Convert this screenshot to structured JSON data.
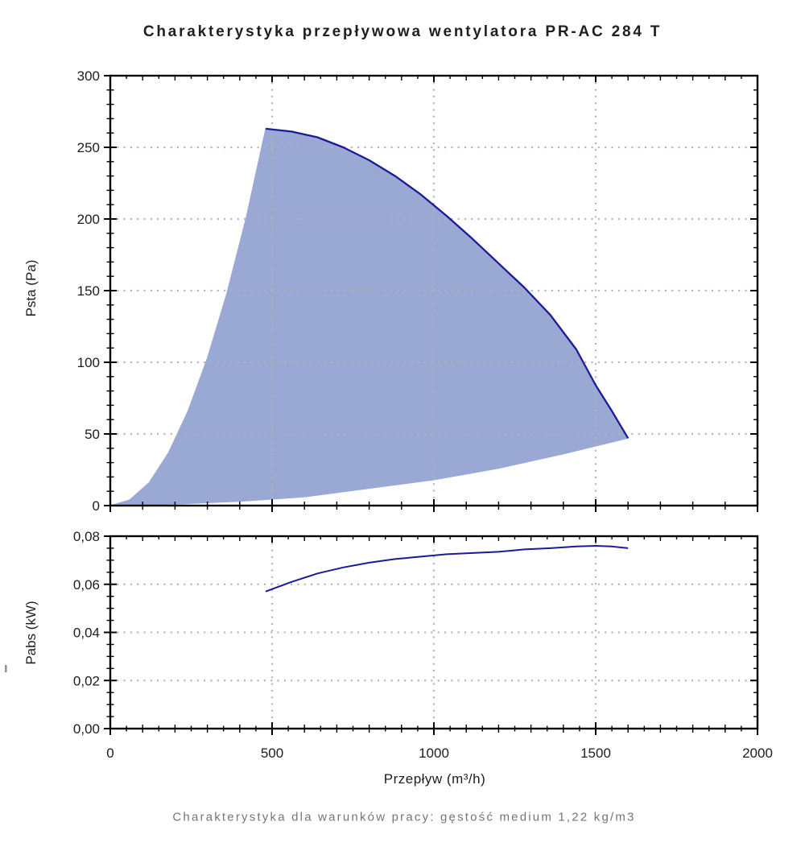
{
  "page": {
    "title": "Charakterystyka przepływowa wentylatora PR-AC 284 T",
    "caption": "Charakterystyka dla warunków pracy: gęstość medium 1,22 kg/m3"
  },
  "colors": {
    "fill": "#9aa8d4",
    "line": "#1b1b99",
    "grid": "#b4b4b4",
    "axis": "#000000",
    "text": "#1d1d1d",
    "title": "#1f1f1f",
    "caption": "#757575"
  },
  "chart_data": [
    {
      "type": "area",
      "title": "",
      "xlabel": "",
      "ylabel": "Psta (Pa)",
      "xlim": [
        0,
        2000
      ],
      "ylim": [
        0,
        300
      ],
      "xticks": [
        0,
        500,
        1000,
        1500,
        2000
      ],
      "yticks": [
        0,
        50,
        100,
        150,
        200,
        250,
        300
      ],
      "ytick_labels": [
        "0",
        "50",
        "100",
        "150",
        "200",
        "250",
        "300"
      ],
      "x_minor_step": 50,
      "y_minor_step": 10,
      "grid": "dotted",
      "grid_x": [
        500,
        1000,
        1500
      ],
      "grid_y": [
        50,
        100,
        150,
        200,
        250
      ],
      "xtick_labels_visible": false,
      "x_bottom_ticks_every": 100,
      "legend": "none",
      "envelope": {
        "description": "shaded operating envelope bounded by surge line, max-speed fan curve and minimum system curve",
        "surge_line": [
          [
            0,
            0
          ],
          [
            60,
            4
          ],
          [
            120,
            16
          ],
          [
            180,
            37
          ],
          [
            240,
            66
          ],
          [
            300,
            103
          ],
          [
            360,
            148
          ],
          [
            420,
            201
          ],
          [
            480,
            263
          ]
        ],
        "fan_curve": [
          [
            480,
            263
          ],
          [
            560,
            261
          ],
          [
            640,
            257
          ],
          [
            720,
            250
          ],
          [
            800,
            241
          ],
          [
            880,
            230
          ],
          [
            960,
            217
          ],
          [
            1040,
            202
          ],
          [
            1120,
            186
          ],
          [
            1200,
            169
          ],
          [
            1280,
            152
          ],
          [
            1360,
            133
          ],
          [
            1440,
            109
          ],
          [
            1500,
            84
          ],
          [
            1550,
            66
          ],
          [
            1600,
            47
          ]
        ],
        "min_system_curve": [
          [
            0,
            0
          ],
          [
            200,
            1
          ],
          [
            400,
            3
          ],
          [
            600,
            6
          ],
          [
            800,
            12
          ],
          [
            1000,
            18
          ],
          [
            1200,
            26
          ],
          [
            1400,
            36
          ],
          [
            1600,
            47
          ]
        ]
      }
    },
    {
      "type": "line",
      "title": "",
      "xlabel": "Przepływ (m³/h)",
      "ylabel": "Pabs (kW)",
      "xlim": [
        0,
        2000
      ],
      "ylim": [
        0,
        0.08
      ],
      "xticks": [
        0,
        500,
        1000,
        1500,
        2000
      ],
      "xtick_labels": [
        "0",
        "500",
        "1000",
        "1500",
        "2000"
      ],
      "yticks": [
        0,
        0.02,
        0.04,
        0.06,
        0.08
      ],
      "ytick_labels": [
        "0,00",
        "0,02",
        "0,04",
        "0,06",
        "0,08"
      ],
      "x_minor_step": 50,
      "y_minor_step": 0.005,
      "grid": "dotted",
      "grid_x": [
        500,
        1000,
        1500
      ],
      "grid_y": [
        0.02,
        0.04,
        0.06
      ],
      "xtick_labels_visible": true,
      "x_bottom_ticks_every": 50,
      "legend": "none",
      "series": [
        {
          "name": "Pabs",
          "points": [
            [
              480,
              0.057
            ],
            [
              560,
              0.061
            ],
            [
              640,
              0.0645
            ],
            [
              720,
              0.067
            ],
            [
              800,
              0.069
            ],
            [
              880,
              0.0705
            ],
            [
              960,
              0.0715
            ],
            [
              1040,
              0.0725
            ],
            [
              1120,
              0.073
            ],
            [
              1200,
              0.0735
            ],
            [
              1280,
              0.0745
            ],
            [
              1360,
              0.075
            ],
            [
              1440,
              0.0757
            ],
            [
              1500,
              0.076
            ],
            [
              1550,
              0.0757
            ],
            [
              1600,
              0.075
            ]
          ]
        }
      ]
    }
  ]
}
